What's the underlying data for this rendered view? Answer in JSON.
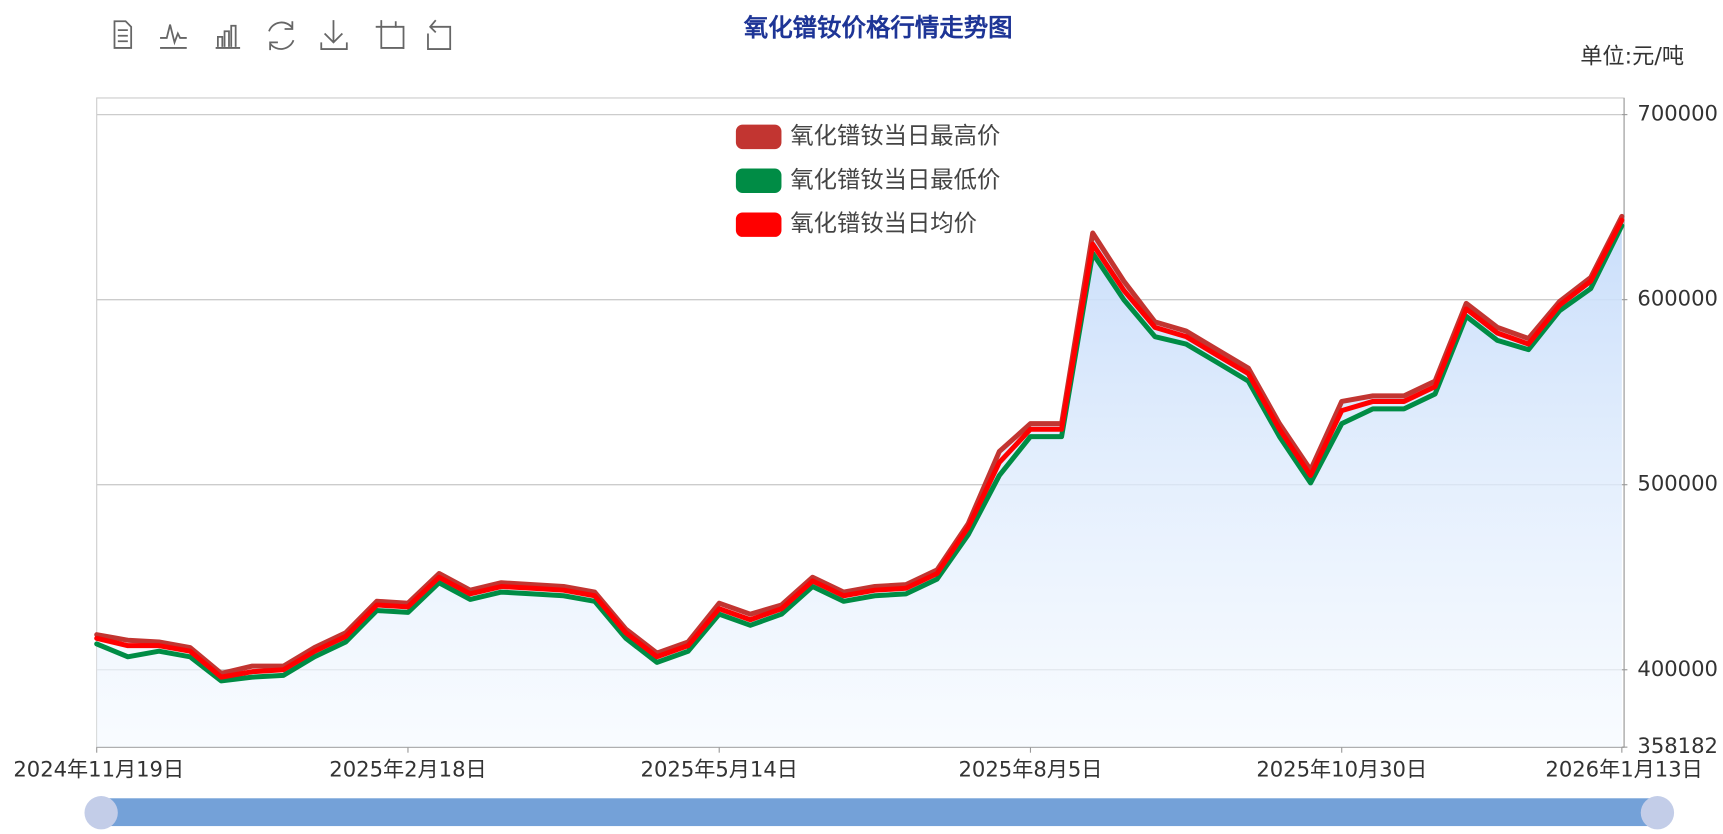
{
  "chart_data": {
    "type": "line",
    "title": "氧化镨钕价格行情走势图",
    "unit": "单位:元/吨",
    "categories": [
      "2024年11月19日",
      null,
      null,
      null,
      null,
      null,
      null,
      null,
      null,
      null,
      "2025年2月18日",
      null,
      null,
      null,
      null,
      null,
      null,
      null,
      null,
      null,
      "2025年5月14日",
      null,
      null,
      null,
      null,
      null,
      null,
      null,
      null,
      null,
      "2025年8月5日",
      null,
      null,
      null,
      null,
      null,
      null,
      null,
      null,
      null,
      "2025年10月30日",
      null,
      null,
      null,
      null,
      null,
      null,
      null,
      null,
      "2026年1月13日"
    ],
    "series": [
      {
        "name": "氧化镨钕当日最高价",
        "color": "#c23531",
        "values": [
          419000,
          416000,
          415000,
          412000,
          398000,
          402000,
          402000,
          412000,
          420000,
          437000,
          436000,
          452000,
          443000,
          447000,
          446000,
          445000,
          442000,
          422000,
          409000,
          415000,
          436000,
          430000,
          435000,
          450000,
          442000,
          445000,
          446000,
          454000,
          479000,
          518000,
          533000,
          533000,
          636000,
          610000,
          588000,
          583000,
          573000,
          563000,
          533000,
          508000,
          545000,
          548000,
          548000,
          556000,
          598000,
          585000,
          579000,
          599000,
          612000,
          645000
        ]
      },
      {
        "name": "氧化镨钕当日最低价",
        "color": "#008c45",
        "values": [
          414000,
          407000,
          410000,
          407000,
          394000,
          396000,
          397000,
          407000,
          415000,
          432000,
          431000,
          447000,
          438000,
          442000,
          441000,
          440000,
          437000,
          417000,
          404000,
          410000,
          430000,
          424000,
          430000,
          445000,
          437000,
          440000,
          441000,
          449000,
          473000,
          505000,
          526000,
          526000,
          625000,
          600000,
          580000,
          576000,
          566000,
          556000,
          526000,
          501000,
          533000,
          541000,
          541000,
          549000,
          591000,
          578000,
          573000,
          594000,
          606000,
          640000
        ]
      },
      {
        "name": "氧化镨钕当日均价",
        "color": "#ff0000",
        "values": [
          417000,
          413000,
          413000,
          410000,
          396000,
          399000,
          400000,
          410000,
          418000,
          435000,
          434000,
          450000,
          441000,
          445000,
          444000,
          443000,
          440000,
          420000,
          407000,
          413000,
          433000,
          427000,
          433000,
          448000,
          440000,
          443000,
          444000,
          452000,
          477000,
          512000,
          530000,
          530000,
          630000,
          605000,
          585000,
          580000,
          570000,
          560000,
          530000,
          505000,
          540000,
          545000,
          545000,
          553000,
          595000,
          582000,
          576000,
          597000,
          610000,
          643000
        ]
      }
    ],
    "ylim": [
      358182,
      709000
    ],
    "yticks": [
      358182,
      400000,
      500000,
      600000,
      700000
    ],
    "grid": true,
    "legend": "top"
  }
}
